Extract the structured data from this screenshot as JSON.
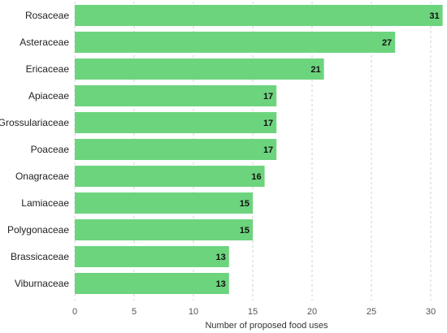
{
  "chart_data": {
    "type": "bar",
    "orientation": "horizontal",
    "categories": [
      "Rosaceae",
      "Asteraceae",
      "Ericaceae",
      "Apiaceae",
      "Grossulariaceae",
      "Poaceae",
      "Onagraceae",
      "Lamiaceae",
      "Polygonaceae",
      "Brassicaceae",
      "Viburnaceae"
    ],
    "values": [
      31,
      27,
      21,
      17,
      17,
      17,
      16,
      15,
      15,
      13,
      13
    ],
    "title": "",
    "xlabel": "Number of proposed food uses",
    "ylabel": "",
    "xlim": [
      0,
      31
    ],
    "xticks": [
      0,
      5,
      10,
      15,
      20,
      25,
      30
    ],
    "grid": "vertical dashed",
    "legend": "none",
    "bar_color": "#6dd47e"
  }
}
